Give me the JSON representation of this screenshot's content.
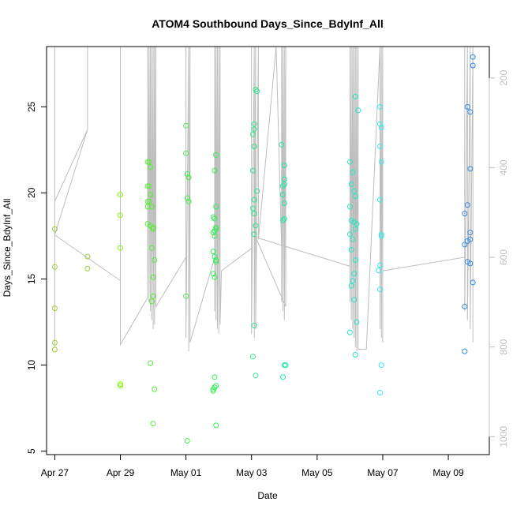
{
  "chart_data": {
    "type": "scatter",
    "title": "ATOM4 Southbound Days_Since_BdyInf_All",
    "xlabel": "Date",
    "ylabel": "Days_Since_BdyInf_All",
    "x_ticks": [
      "Apr 27",
      "Apr 29",
      "May 01",
      "May 03",
      "May 05",
      "May 07",
      "May 09"
    ],
    "x_tick_dates": [
      "2014-04-27",
      "2014-04-29",
      "2014-05-01",
      "2014-05-03",
      "2014-05-05",
      "2014-05-07",
      "2014-05-09"
    ],
    "xlim": [
      "2014-04-26T18:00",
      "2014-05-10T06:00"
    ],
    "y_ticks": [
      5,
      10,
      15,
      20,
      25
    ],
    "ylim": [
      4.8,
      28.5
    ],
    "right_axis": {
      "ticks": [
        200,
        400,
        600,
        800,
        1000
      ],
      "ylim": [
        1040,
        130
      ],
      "color": "#bebebe"
    },
    "line_color": "#bebebe",
    "line_points": [
      [
        "2014-04-27T00:00",
        800
      ],
      [
        "2014-04-27T00:00",
        130
      ],
      [
        "2014-04-27T00:00",
        475
      ],
      [
        "2014-04-28T00:00",
        315
      ],
      [
        "2014-04-28T00:00",
        130
      ],
      [
        "2014-04-28T00:00",
        315
      ],
      [
        "2014-04-27T00:00",
        550
      ],
      [
        "2014-04-29T00:00",
        652
      ],
      [
        "2014-04-29T00:00",
        130
      ],
      [
        "2014-04-29T00:00",
        780
      ],
      [
        "2014-04-29T00:00",
        795
      ],
      [
        "2014-04-29T20:00",
        690
      ],
      [
        "2014-04-29T20:00",
        130
      ],
      [
        "2014-04-29T20:00",
        680
      ],
      [
        "2014-04-29T21:00",
        130
      ],
      [
        "2014-04-29T21:00",
        700
      ],
      [
        "2014-04-29T22:00",
        130
      ],
      [
        "2014-04-29T22:00",
        720
      ],
      [
        "2014-04-29T23:00",
        130
      ],
      [
        "2014-04-29T23:00",
        740
      ],
      [
        "2014-04-30T00:00",
        130
      ],
      [
        "2014-04-30T00:00",
        760
      ],
      [
        "2014-04-30T01:00",
        130
      ],
      [
        "2014-04-30T01:00",
        750
      ],
      [
        "2014-04-30T02:00",
        130
      ],
      [
        "2014-04-30T02:00",
        710
      ],
      [
        "2014-05-01T00:00",
        600
      ],
      [
        "2014-05-01T00:00",
        130
      ],
      [
        "2014-05-01T00:00",
        780
      ],
      [
        "2014-05-01T02:00",
        130
      ],
      [
        "2014-05-01T02:00",
        810
      ],
      [
        "2014-05-01T03:00",
        130
      ],
      [
        "2014-05-01T03:00",
        790
      ],
      [
        "2014-05-01T21:00",
        600
      ],
      [
        "2014-05-01T21:00",
        130
      ],
      [
        "2014-05-01T21:00",
        720
      ],
      [
        "2014-05-01T22:00",
        130
      ],
      [
        "2014-05-01T22:00",
        740
      ],
      [
        "2014-05-01T23:00",
        130
      ],
      [
        "2014-05-01T23:00",
        760
      ],
      [
        "2014-05-02T00:00",
        130
      ],
      [
        "2014-05-02T00:00",
        770
      ],
      [
        "2014-05-02T01:00",
        130
      ],
      [
        "2014-05-02T01:00",
        750
      ],
      [
        "2014-05-02T02:00",
        630
      ],
      [
        "2014-05-03T00:00",
        580
      ],
      [
        "2014-05-03T00:00",
        130
      ],
      [
        "2014-05-03T00:00",
        770
      ],
      [
        "2014-05-03T02:00",
        130
      ],
      [
        "2014-05-03T02:00",
        780
      ],
      [
        "2014-05-03T03:00",
        130
      ],
      [
        "2014-05-03T03:00",
        760
      ],
      [
        "2014-05-03T05:00",
        130
      ],
      [
        "2014-05-03T05:00",
        560
      ],
      [
        "2014-05-03T18:00",
        130
      ],
      [
        "2014-05-03T22:00",
        580
      ],
      [
        "2014-05-03T22:00",
        130
      ],
      [
        "2014-05-03T22:00",
        700
      ],
      [
        "2014-05-03T23:00",
        130
      ],
      [
        "2014-05-03T23:00",
        720
      ],
      [
        "2014-05-04T00:00",
        130
      ],
      [
        "2014-05-04T00:00",
        740
      ],
      [
        "2014-05-04T01:00",
        130
      ],
      [
        "2014-05-04T01:00",
        710
      ],
      [
        "2014-05-03T03:00",
        555
      ],
      [
        "2014-05-06T00:00",
        620
      ],
      [
        "2014-05-06T00:00",
        130
      ],
      [
        "2014-05-06T00:00",
        700
      ],
      [
        "2014-05-06T01:00",
        130
      ],
      [
        "2014-05-06T01:00",
        740
      ],
      [
        "2014-05-06T02:00",
        130
      ],
      [
        "2014-05-06T02:00",
        760
      ],
      [
        "2014-05-06T03:00",
        130
      ],
      [
        "2014-05-06T03:00",
        780
      ],
      [
        "2014-05-06T04:00",
        130
      ],
      [
        "2014-05-06T04:00",
        800
      ],
      [
        "2014-05-06T05:00",
        130
      ],
      [
        "2014-05-06T05:00",
        810
      ],
      [
        "2014-05-06T06:00",
        130
      ],
      [
        "2014-05-06T06:00",
        805
      ],
      [
        "2014-05-06T12:00",
        805
      ],
      [
        "2014-05-06T22:00",
        130
      ],
      [
        "2014-05-06T22:00",
        760
      ],
      [
        "2014-05-06T23:00",
        130
      ],
      [
        "2014-05-06T23:00",
        780
      ],
      [
        "2014-05-07T00:00",
        130
      ],
      [
        "2014-05-07T00:00",
        790
      ],
      [
        "2014-05-07T00:00",
        630
      ],
      [
        "2014-05-09T12:00",
        600
      ],
      [
        "2014-05-09T12:00",
        130
      ],
      [
        "2014-05-09T12:00",
        720
      ],
      [
        "2014-05-09T14:00",
        130
      ],
      [
        "2014-05-09T14:00",
        740
      ],
      [
        "2014-05-09T16:00",
        130
      ],
      [
        "2014-05-09T16:00",
        760
      ],
      [
        "2014-05-09T18:00",
        130
      ],
      [
        "2014-05-09T18:00",
        790
      ]
    ],
    "series": [
      {
        "color": "#9ACD32",
        "points": [
          [
            "2014-04-27T00:00",
            17.9
          ],
          [
            "2014-04-27T00:00",
            15.7
          ],
          [
            "2014-04-27T00:00",
            13.3
          ],
          [
            "2014-04-27T00:00",
            11.3
          ],
          [
            "2014-04-27T00:00",
            10.9
          ],
          [
            "2014-04-28T00:00",
            16.3
          ],
          [
            "2014-04-28T00:00",
            15.6
          ]
        ]
      },
      {
        "color": "#7CFC00",
        "points": [
          [
            "2014-04-29T00:00",
            19.9
          ],
          [
            "2014-04-29T00:00",
            18.7
          ],
          [
            "2014-04-29T00:00",
            16.8
          ],
          [
            "2014-04-29T00:00",
            8.9
          ],
          [
            "2014-04-29T00:00",
            8.8
          ]
        ]
      },
      {
        "color": "#55EE33",
        "points": [
          [
            "2014-04-29T20:00",
            21.8
          ],
          [
            "2014-04-29T21:00",
            21.8
          ],
          [
            "2014-04-29T22:00",
            21.5
          ],
          [
            "2014-04-29T20:00",
            20.4
          ],
          [
            "2014-04-29T21:00",
            20.4
          ],
          [
            "2014-04-29T22:00",
            19.9
          ],
          [
            "2014-04-29T20:00",
            19.5
          ],
          [
            "2014-04-29T21:00",
            19.5
          ],
          [
            "2014-04-29T20:00",
            19.2
          ],
          [
            "2014-04-29T23:00",
            19.2
          ],
          [
            "2014-04-29T20:00",
            18.2
          ],
          [
            "2014-04-29T22:00",
            18.1
          ],
          [
            "2014-04-30T00:00",
            18.0
          ],
          [
            "2014-04-30T00:00",
            17.9
          ],
          [
            "2014-04-29T23:00",
            16.8
          ],
          [
            "2014-04-30T01:00",
            16.1
          ],
          [
            "2014-04-30T00:00",
            15.1
          ],
          [
            "2014-04-30T00:00",
            14.0
          ],
          [
            "2014-04-29T23:00",
            13.7
          ],
          [
            "2014-04-29T22:00",
            10.1
          ],
          [
            "2014-04-30T01:00",
            8.6
          ],
          [
            "2014-04-30T00:00",
            6.6
          ]
        ]
      },
      {
        "color": "#44EE44",
        "points": [
          [
            "2014-05-01T00:00",
            23.9
          ],
          [
            "2014-05-01T00:00",
            22.3
          ],
          [
            "2014-05-01T01:00",
            21.1
          ],
          [
            "2014-05-01T02:00",
            20.9
          ],
          [
            "2014-05-01T01:00",
            19.7
          ],
          [
            "2014-05-01T02:00",
            19.5
          ],
          [
            "2014-05-01T00:00",
            14.0
          ],
          [
            "2014-05-01T01:00",
            5.6
          ]
        ]
      },
      {
        "color": "#33EE55",
        "points": [
          [
            "2014-05-01T22:00",
            22.2
          ],
          [
            "2014-05-01T21:00",
            21.3
          ],
          [
            "2014-05-01T22:00",
            19.2
          ],
          [
            "2014-05-01T20:00",
            18.6
          ],
          [
            "2014-05-01T21:00",
            18.5
          ],
          [
            "2014-05-01T22:00",
            18.0
          ],
          [
            "2014-05-01T22:00",
            17.9
          ],
          [
            "2014-05-01T21:00",
            17.8
          ],
          [
            "2014-05-01T20:00",
            17.7
          ],
          [
            "2014-05-01T21:00",
            17.5
          ],
          [
            "2014-05-01T20:00",
            16.6
          ],
          [
            "2014-05-01T21:00",
            16.3
          ],
          [
            "2014-05-01T22:00",
            16.1
          ],
          [
            "2014-05-01T22:00",
            16.0
          ],
          [
            "2014-05-01T20:00",
            15.3
          ],
          [
            "2014-05-01T21:00",
            15.1
          ],
          [
            "2014-05-01T21:00",
            9.3
          ],
          [
            "2014-05-01T22:00",
            8.8
          ],
          [
            "2014-05-01T21:00",
            8.7
          ],
          [
            "2014-05-01T20:00",
            8.6
          ],
          [
            "2014-05-01T20:00",
            8.5
          ],
          [
            "2014-05-01T22:00",
            6.5
          ]
        ]
      },
      {
        "color": "#2EE88A",
        "points": [
          [
            "2014-05-03T03:00",
            26.0
          ],
          [
            "2014-05-03T04:00",
            25.9
          ],
          [
            "2014-05-03T02:00",
            24.0
          ],
          [
            "2014-05-03T02:00",
            23.7
          ],
          [
            "2014-05-03T01:00",
            23.4
          ],
          [
            "2014-05-03T02:00",
            22.7
          ],
          [
            "2014-05-03T01:00",
            21.3
          ],
          [
            "2014-05-03T04:00",
            20.1
          ],
          [
            "2014-05-03T02:00",
            19.6
          ],
          [
            "2014-05-03T01:00",
            19.1
          ],
          [
            "2014-05-03T02:00",
            18.8
          ],
          [
            "2014-05-03T03:00",
            18.1
          ],
          [
            "2014-05-03T02:00",
            17.6
          ],
          [
            "2014-05-03T02:00",
            12.3
          ],
          [
            "2014-05-03T01:00",
            10.5
          ],
          [
            "2014-05-03T03:00",
            9.4
          ]
        ]
      },
      {
        "color": "#20E8A0",
        "points": [
          [
            "2014-05-03T22:00",
            22.8
          ],
          [
            "2014-05-04T00:00",
            21.6
          ],
          [
            "2014-05-04T00:00",
            20.8
          ],
          [
            "2014-05-04T00:00",
            20.5
          ],
          [
            "2014-05-03T23:00",
            20.4
          ],
          [
            "2014-05-03T23:00",
            19.9
          ],
          [
            "2014-05-04T00:00",
            19.4
          ],
          [
            "2014-05-04T00:00",
            18.5
          ],
          [
            "2014-05-03T23:00",
            18.4
          ],
          [
            "2014-05-04T00:00",
            10.0
          ],
          [
            "2014-05-04T01:00",
            10.0
          ],
          [
            "2014-05-03T23:00",
            9.3
          ]
        ]
      },
      {
        "color": "#22E8C8",
        "points": [
          [
            "2014-05-06T04:00",
            25.6
          ],
          [
            "2014-05-06T06:00",
            24.8
          ],
          [
            "2014-05-06T00:00",
            21.8
          ],
          [
            "2014-05-06T02:00",
            21.2
          ],
          [
            "2014-05-06T01:00",
            20.5
          ],
          [
            "2014-05-06T03:00",
            20.1
          ],
          [
            "2014-05-06T04:00",
            19.8
          ],
          [
            "2014-05-06T00:00",
            19.2
          ],
          [
            "2014-05-06T01:00",
            18.4
          ],
          [
            "2014-05-06T03:00",
            18.3
          ],
          [
            "2014-05-06T05:00",
            18.2
          ],
          [
            "2014-05-06T04:00",
            17.9
          ],
          [
            "2014-05-06T00:00",
            17.6
          ],
          [
            "2014-05-06T02:00",
            17.3
          ],
          [
            "2014-05-06T01:00",
            16.7
          ],
          [
            "2014-05-06T04:00",
            16.1
          ],
          [
            "2014-05-06T03:00",
            15.3
          ],
          [
            "2014-05-06T02:00",
            14.9
          ],
          [
            "2014-05-06T01:00",
            14.6
          ],
          [
            "2014-05-06T03:00",
            13.8
          ],
          [
            "2014-05-06T05:00",
            12.5
          ],
          [
            "2014-05-06T00:00",
            11.9
          ],
          [
            "2014-05-06T04:00",
            10.6
          ]
        ]
      },
      {
        "color": "#33EEEE",
        "points": [
          [
            "2014-05-06T22:00",
            25.0
          ],
          [
            "2014-05-06T22:00",
            24.0
          ],
          [
            "2014-05-06T23:00",
            23.8
          ],
          [
            "2014-05-06T22:00",
            22.7
          ],
          [
            "2014-05-06T23:00",
            21.8
          ],
          [
            "2014-05-06T22:00",
            19.6
          ],
          [
            "2014-05-06T23:00",
            17.6
          ],
          [
            "2014-05-06T23:00",
            17.5
          ],
          [
            "2014-05-06T22:00",
            15.8
          ],
          [
            "2014-05-06T21:00",
            15.5
          ],
          [
            "2014-05-06T22:00",
            14.4
          ],
          [
            "2014-05-06T23:00",
            10.0
          ],
          [
            "2014-05-06T22:00",
            8.4
          ]
        ]
      },
      {
        "color": "#2E8BE6",
        "points": [
          [
            "2014-05-09T18:00",
            27.9
          ],
          [
            "2014-05-09T18:00",
            27.4
          ],
          [
            "2014-05-09T14:00",
            25.0
          ],
          [
            "2014-05-09T16:00",
            24.7
          ],
          [
            "2014-05-09T16:00",
            21.4
          ],
          [
            "2014-05-09T14:00",
            19.3
          ],
          [
            "2014-05-09T12:00",
            18.8
          ],
          [
            "2014-05-09T16:00",
            17.7
          ],
          [
            "2014-05-09T16:00",
            17.3
          ],
          [
            "2014-05-09T14:00",
            17.2
          ],
          [
            "2014-05-09T12:00",
            17.0
          ],
          [
            "2014-05-09T14:00",
            16.0
          ],
          [
            "2014-05-09T16:00",
            15.9
          ],
          [
            "2014-05-09T18:00",
            14.8
          ],
          [
            "2014-05-09T12:00",
            13.4
          ],
          [
            "2014-05-09T12:00",
            10.8
          ]
        ]
      }
    ]
  }
}
